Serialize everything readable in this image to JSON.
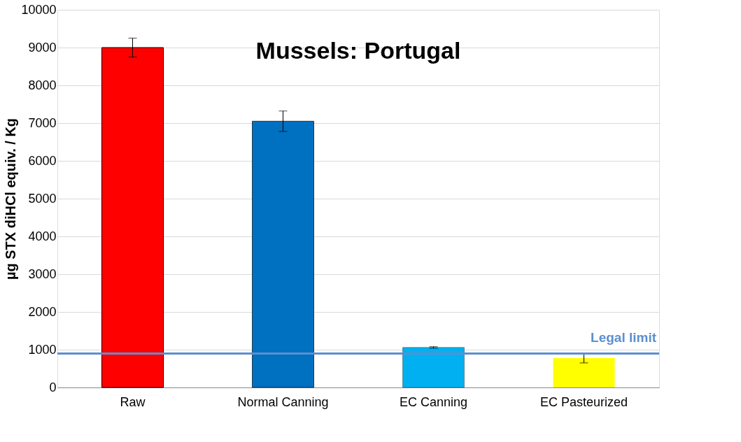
{
  "chart_data": {
    "type": "bar",
    "title": "Mussels: Portugal",
    "ylabel": "µg STX diHCl  equiv. / Kg",
    "categories": [
      "Raw",
      "Normal Canning",
      "EC Canning",
      "EC Pasteurized"
    ],
    "values": [
      9000,
      7050,
      1060,
      780
    ],
    "colors": [
      "#ff0000",
      "#0070c0",
      "#00b0f0",
      "#ffff00"
    ],
    "errors": [
      250,
      270,
      20,
      130
    ],
    "ylim": [
      0,
      10000
    ],
    "yticks": [
      0,
      1000,
      2000,
      3000,
      4000,
      5000,
      6000,
      7000,
      8000,
      9000,
      10000
    ],
    "grid": "y",
    "legend": false,
    "ref_lines": [
      {
        "axis": "y",
        "value": 900,
        "label": "Legal limit",
        "color": "#5b8fd0"
      }
    ]
  }
}
